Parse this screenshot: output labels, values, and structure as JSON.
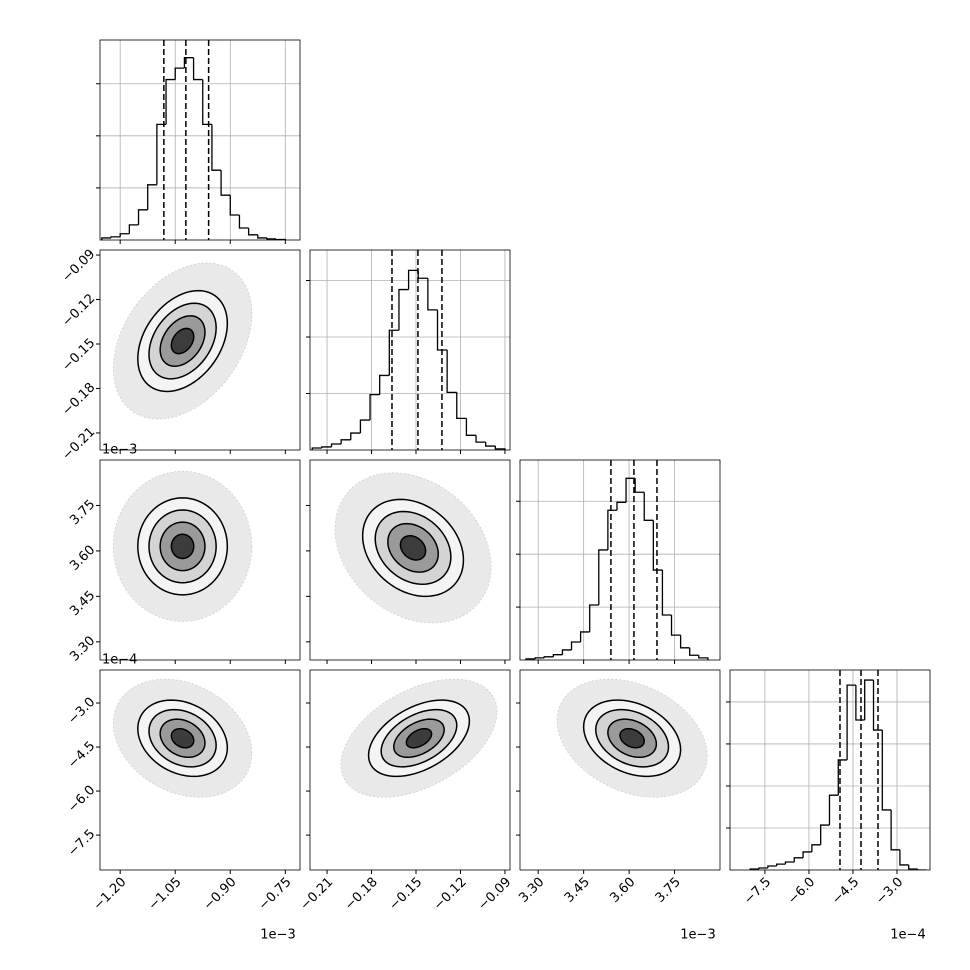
{
  "chart_data": {
    "type": "corner",
    "grid": true,
    "levels": [
      0.5,
      1,
      1.5,
      2
    ],
    "line_color": "#000000",
    "params": [
      {
        "lim": [
          -1.255,
          -0.71
        ],
        "offset": "1e−3",
        "ticks": [
          {
            "value": -1.2,
            "label": "−1.20"
          },
          {
            "value": -1.05,
            "label": "−1.05"
          },
          {
            "value": -0.9,
            "label": "−0.90"
          },
          {
            "value": -0.75,
            "label": "−0.75"
          }
        ]
      },
      {
        "lim": [
          -0.2215,
          -0.0866
        ],
        "ticks": [
          {
            "value": -0.21,
            "label": "−0.21"
          },
          {
            "value": -0.18,
            "label": "−0.18"
          },
          {
            "value": -0.15,
            "label": "−0.15"
          },
          {
            "value": -0.12,
            "label": "−0.12"
          },
          {
            "value": -0.09,
            "label": "−0.09"
          }
        ]
      },
      {
        "lim": [
          3.24,
          3.9
        ],
        "offset": "1e−3",
        "ticks": [
          {
            "value": 3.3,
            "label": "3.30"
          },
          {
            "value": 3.45,
            "label": "3.45"
          },
          {
            "value": 3.6,
            "label": "3.60"
          },
          {
            "value": 3.75,
            "label": "3.75"
          }
        ]
      },
      {
        "lim": [
          -8.69,
          -1.875
        ],
        "offset": "1e−4",
        "ticks": [
          {
            "value": -7.5,
            "label": "−7.5"
          },
          {
            "value": -6.0,
            "label": "−6.0"
          },
          {
            "value": -4.5,
            "label": "−4.5"
          },
          {
            "value": -3.0,
            "label": "−3.0"
          }
        ]
      }
    ],
    "histograms": [
      {
        "ylim": [
          0,
          1920
        ],
        "yticks": [
          500,
          1000,
          1500
        ],
        "quantiles": [
          -1.081,
          -1.021,
          -0.959
        ],
        "bins": [
          -1.25,
          -1.225,
          -1.2,
          -1.175,
          -1.15,
          -1.125,
          -1.1,
          -1.075,
          -1.05,
          -1.025,
          -1.0,
          -0.975,
          -0.95,
          -0.925,
          -0.9,
          -0.875,
          -0.85,
          -0.825,
          -0.8,
          -0.775,
          -0.75
        ],
        "counts": [
          20,
          30,
          60,
          145,
          290,
          530,
          1110,
          1540,
          1650,
          1750,
          1540,
          1110,
          670,
          430,
          240,
          115,
          50,
          20,
          10,
          5
        ]
      },
      {
        "ylim": [
          0,
          1770
        ],
        "yticks": [
          500,
          1000,
          1500
        ],
        "quantiles": [
          -0.1662,
          -0.1487,
          -0.1325
        ],
        "bins": [
          -0.22,
          -0.2135,
          -0.207,
          -0.2005,
          -0.194,
          -0.1875,
          -0.181,
          -0.1745,
          -0.168,
          -0.1615,
          -0.155,
          -0.1485,
          -0.142,
          -0.1355,
          -0.129,
          -0.1225,
          -0.116,
          -0.1095,
          -0.103,
          -0.0965,
          -0.09
        ],
        "counts": [
          18,
          27,
          53,
          90,
          150,
          265,
          490,
          660,
          1060,
          1420,
          1590,
          1520,
          1240,
          885,
          510,
          280,
          130,
          70,
          35,
          10
        ]
      },
      {
        "ylim": [
          0,
          1890
        ],
        "yticks": [
          500,
          1000,
          1500
        ],
        "quantiles": [
          3.54,
          3.616,
          3.692
        ],
        "bins": [
          3.26,
          3.29,
          3.32,
          3.35,
          3.38,
          3.41,
          3.44,
          3.47,
          3.5,
          3.53,
          3.56,
          3.59,
          3.62,
          3.65,
          3.68,
          3.71,
          3.74,
          3.77,
          3.8,
          3.83,
          3.86
        ],
        "counts": [
          10,
          20,
          30,
          50,
          95,
          170,
          265,
          520,
          1040,
          1415,
          1490,
          1717,
          1585,
          1320,
          850,
          425,
          235,
          115,
          45,
          20
        ]
      },
      {
        "ylim": [
          0,
          2380
        ],
        "yticks": [
          500,
          1000,
          1500,
          2000
        ],
        "quantiles": [
          -4.942,
          -4.226,
          -3.647
        ],
        "bins": [
          -8.0,
          -7.7,
          -7.4,
          -7.1,
          -6.8,
          -6.5,
          -6.2,
          -5.9,
          -5.6,
          -5.3,
          -5.0,
          -4.7,
          -4.4,
          -4.1,
          -3.8,
          -3.5,
          -3.2,
          -2.9,
          -2.6,
          -2.3,
          -2.0
        ],
        "counts": [
          12,
          24,
          48,
          70,
          95,
          145,
          215,
          300,
          535,
          890,
          1310,
          2200,
          1785,
          2260,
          1665,
          715,
          240,
          60,
          12,
          0
        ]
      }
    ],
    "panels": [
      {
        "x": 0,
        "y": 1,
        "center": [
          -1.03,
          -0.148
        ],
        "sigma": [
          0.061,
          0.017
        ],
        "corr": 0.35
      },
      {
        "x": 0,
        "y": 2,
        "center": [
          -1.03,
          3.615
        ],
        "sigma": [
          0.061,
          0.08
        ],
        "corr": 0
      },
      {
        "x": 1,
        "y": 2,
        "center": [
          -0.152,
          3.61
        ],
        "sigma": [
          0.017,
          0.08
        ],
        "corr": -0.25
      },
      {
        "x": 0,
        "y": 3,
        "center": [
          -1.03,
          -4.2
        ],
        "sigma": [
          0.061,
          0.65
        ],
        "corr": -0.25
      },
      {
        "x": 1,
        "y": 3,
        "center": [
          -0.148,
          -4.2
        ],
        "sigma": [
          0.017,
          0.65
        ],
        "corr": 0.45
      },
      {
        "x": 2,
        "y": 3,
        "center": [
          3.61,
          -4.2
        ],
        "sigma": [
          0.08,
          0.65
        ],
        "corr": -0.3
      }
    ]
  }
}
